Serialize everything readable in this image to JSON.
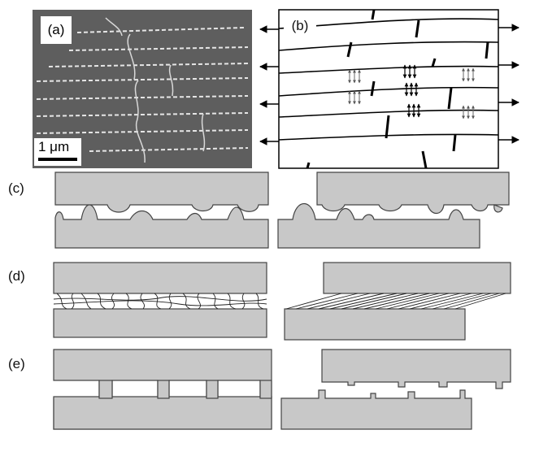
{
  "panels": {
    "a": {
      "label": "(a)",
      "scale_bar": "1 μm"
    },
    "b": {
      "label": "(b)"
    },
    "c": {
      "label": "(c)"
    },
    "d": {
      "label": "(d)"
    },
    "e": {
      "label": "(e)"
    }
  },
  "colors": {
    "block_fill": "#c8c8c8",
    "outline": "#444444",
    "micrograph_bg": "#5c5c5c",
    "crack": "#dcdcdc"
  }
}
